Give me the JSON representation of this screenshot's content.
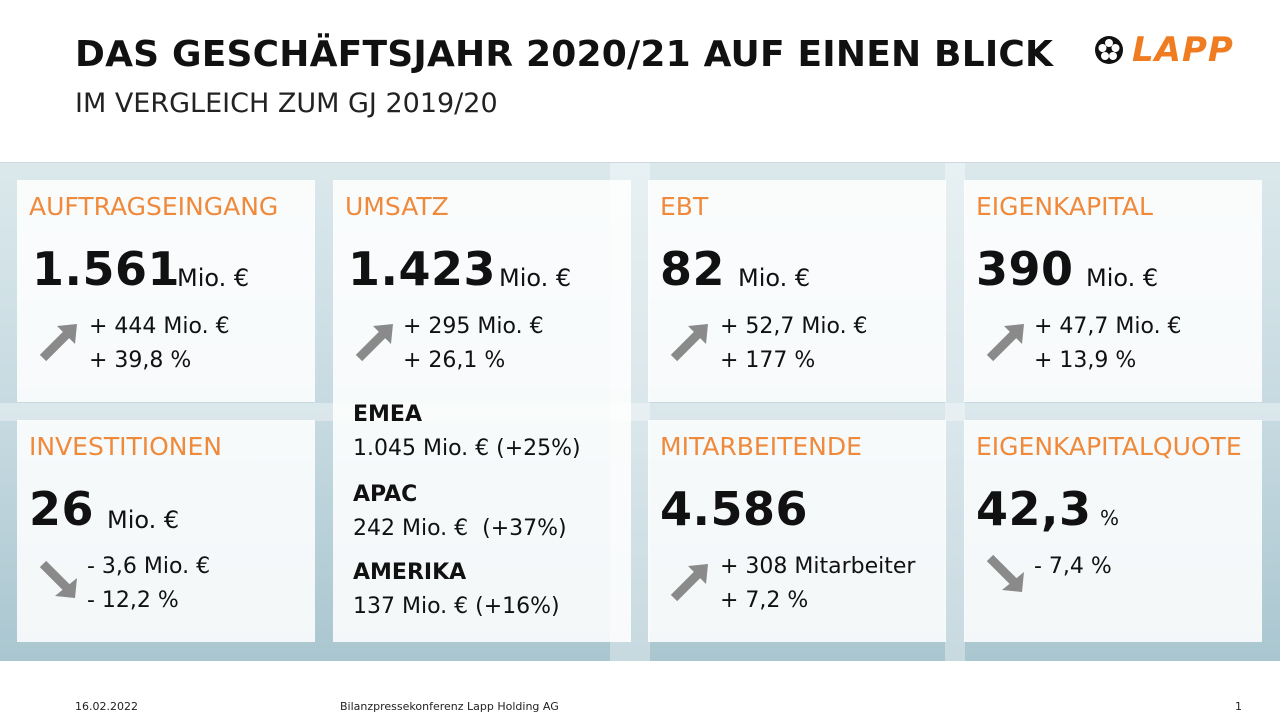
{
  "header": {
    "title": "DAS GESCHÄFTSJAHR 2020/21 AUF EINEN BLICK",
    "subtitle": "IM VERGLEICH ZUM GJ 2019/20",
    "logo_text": "LAPP",
    "brand_color": "#f07c22"
  },
  "cards": {
    "auftragseingang": {
      "label": "AUFTRAGSEINGANG",
      "value": "1.561",
      "unit": "Mio. €",
      "delta_abs": "+ 444 Mio. €",
      "delta_pct": "+ 39,8 %",
      "trend": "up-arrow-icon"
    },
    "umsatz": {
      "label": "UMSATZ",
      "value": "1.423",
      "unit": "Mio. €",
      "delta_abs": "+ 295 Mio. €",
      "delta_pct": "+ 26,1 %",
      "trend": "up-arrow-icon",
      "regions": [
        {
          "name": "EMEA",
          "value": "1.045 Mio. € (+25%)"
        },
        {
          "name": "APAC",
          "value": "242 Mio. €  (+37%)"
        },
        {
          "name": "AMERIKA",
          "value": "137 Mio. € (+16%)"
        }
      ]
    },
    "ebt": {
      "label": "EBT",
      "value": "82",
      "unit": "Mio. €",
      "delta_abs": "+ 52,7 Mio. €",
      "delta_pct": "+ 177 %",
      "trend": "up-arrow-icon"
    },
    "eigenkapital": {
      "label": "EIGENKAPITAL",
      "value": "390",
      "unit": "Mio. €",
      "delta_abs": "+ 47,7 Mio. €",
      "delta_pct": "+ 13,9 %",
      "trend": "up-arrow-icon"
    },
    "investitionen": {
      "label": "INVESTITIONEN",
      "value": "26",
      "unit": "Mio. €",
      "delta_abs": "- 3,6 Mio. €",
      "delta_pct": "- 12,2 %",
      "trend": "down-arrow-icon"
    },
    "mitarbeitende": {
      "label": "MITARBEITENDE",
      "value": "4.586",
      "delta_abs": "+ 308 Mitarbeiter",
      "delta_pct": "+ 7,2 %",
      "trend": "up-arrow-icon"
    },
    "eigenkapitalquote": {
      "label": "EIGENKAPITALQUOTE",
      "value": "42,3",
      "unit": "%",
      "delta_pct": "- 7,4 %",
      "trend": "down-arrow-icon"
    }
  },
  "footer": {
    "date": "16.02.2022",
    "event": "Bilanzpressekonferenz Lapp Holding AG",
    "page": "1"
  }
}
